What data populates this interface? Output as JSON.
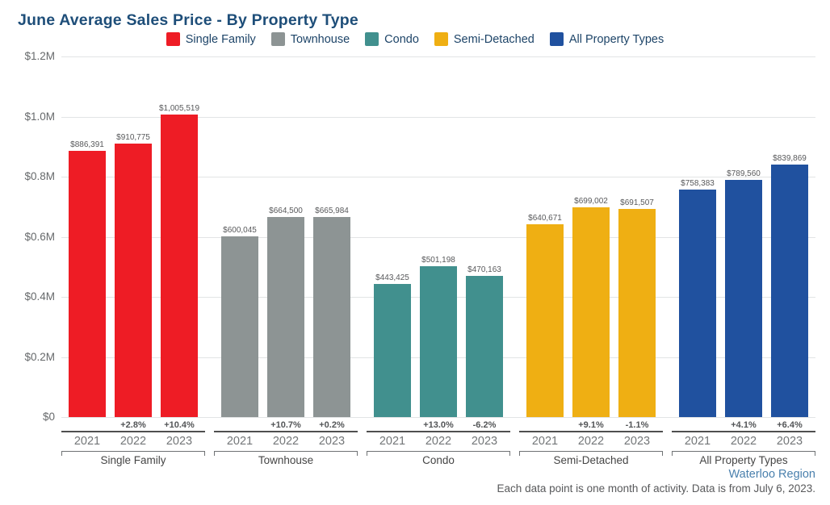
{
  "title": "June Average Sales Price - By Property Type",
  "footer": {
    "region": "Waterloo Region",
    "note": "Each data point is one month of activity. Data is from July 6, 2023."
  },
  "colors": {
    "title_text": "#1e4e79",
    "legend_text": "#1d4468",
    "gridline": "#e2e4e5",
    "axis_text": "#66696b",
    "single_family": "#ee1c25",
    "townhouse": "#8d9494",
    "condo": "#41908e",
    "semi_detached": "#efaf13",
    "all_property_types": "#20519f"
  },
  "chart_data": {
    "type": "bar",
    "title": "June Average Sales Price - By Property Type",
    "xlabel": "",
    "ylabel": "",
    "ylim": [
      0,
      1200000
    ],
    "grid": true,
    "legend_position": "top",
    "yticks": [
      {
        "value": 0,
        "label": "$0"
      },
      {
        "value": 200000,
        "label": "$0.2M"
      },
      {
        "value": 400000,
        "label": "$0.4M"
      },
      {
        "value": 600000,
        "label": "$0.6M"
      },
      {
        "value": 800000,
        "label": "$0.8M"
      },
      {
        "value": 1000000,
        "label": "$1.0M"
      },
      {
        "value": 1200000,
        "label": "$1.2M"
      }
    ],
    "categories": [
      "2021",
      "2022",
      "2023"
    ],
    "series": [
      {
        "name": "Single Family",
        "color": "#ee1c25",
        "values": [
          886391,
          910775,
          1005519
        ],
        "value_labels": [
          "$886,391",
          "$910,775",
          "$1,005,519"
        ],
        "pct_change": [
          "",
          "+2.8%",
          "+10.4%"
        ]
      },
      {
        "name": "Townhouse",
        "color": "#8d9494",
        "values": [
          600045,
          664500,
          665984
        ],
        "value_labels": [
          "$600,045",
          "$664,500",
          "$665,984"
        ],
        "pct_change": [
          "",
          "+10.7%",
          "+0.2%"
        ]
      },
      {
        "name": "Condo",
        "color": "#41908e",
        "values": [
          443425,
          501198,
          470163
        ],
        "value_labels": [
          "$443,425",
          "$501,198",
          "$470,163"
        ],
        "pct_change": [
          "",
          "+13.0%",
          "-6.2%"
        ]
      },
      {
        "name": "Semi-Detached",
        "color": "#efaf13",
        "values": [
          640671,
          699002,
          691507
        ],
        "value_labels": [
          "$640,671",
          "$699,002",
          "$691,507"
        ],
        "pct_change": [
          "",
          "+9.1%",
          "-1.1%"
        ]
      },
      {
        "name": "All Property Types",
        "color": "#20519f",
        "values": [
          758383,
          789560,
          839869
        ],
        "value_labels": [
          "$758,383",
          "$789,560",
          "$839,869"
        ],
        "pct_change": [
          "",
          "+4.1%",
          "+6.4%"
        ]
      }
    ]
  }
}
